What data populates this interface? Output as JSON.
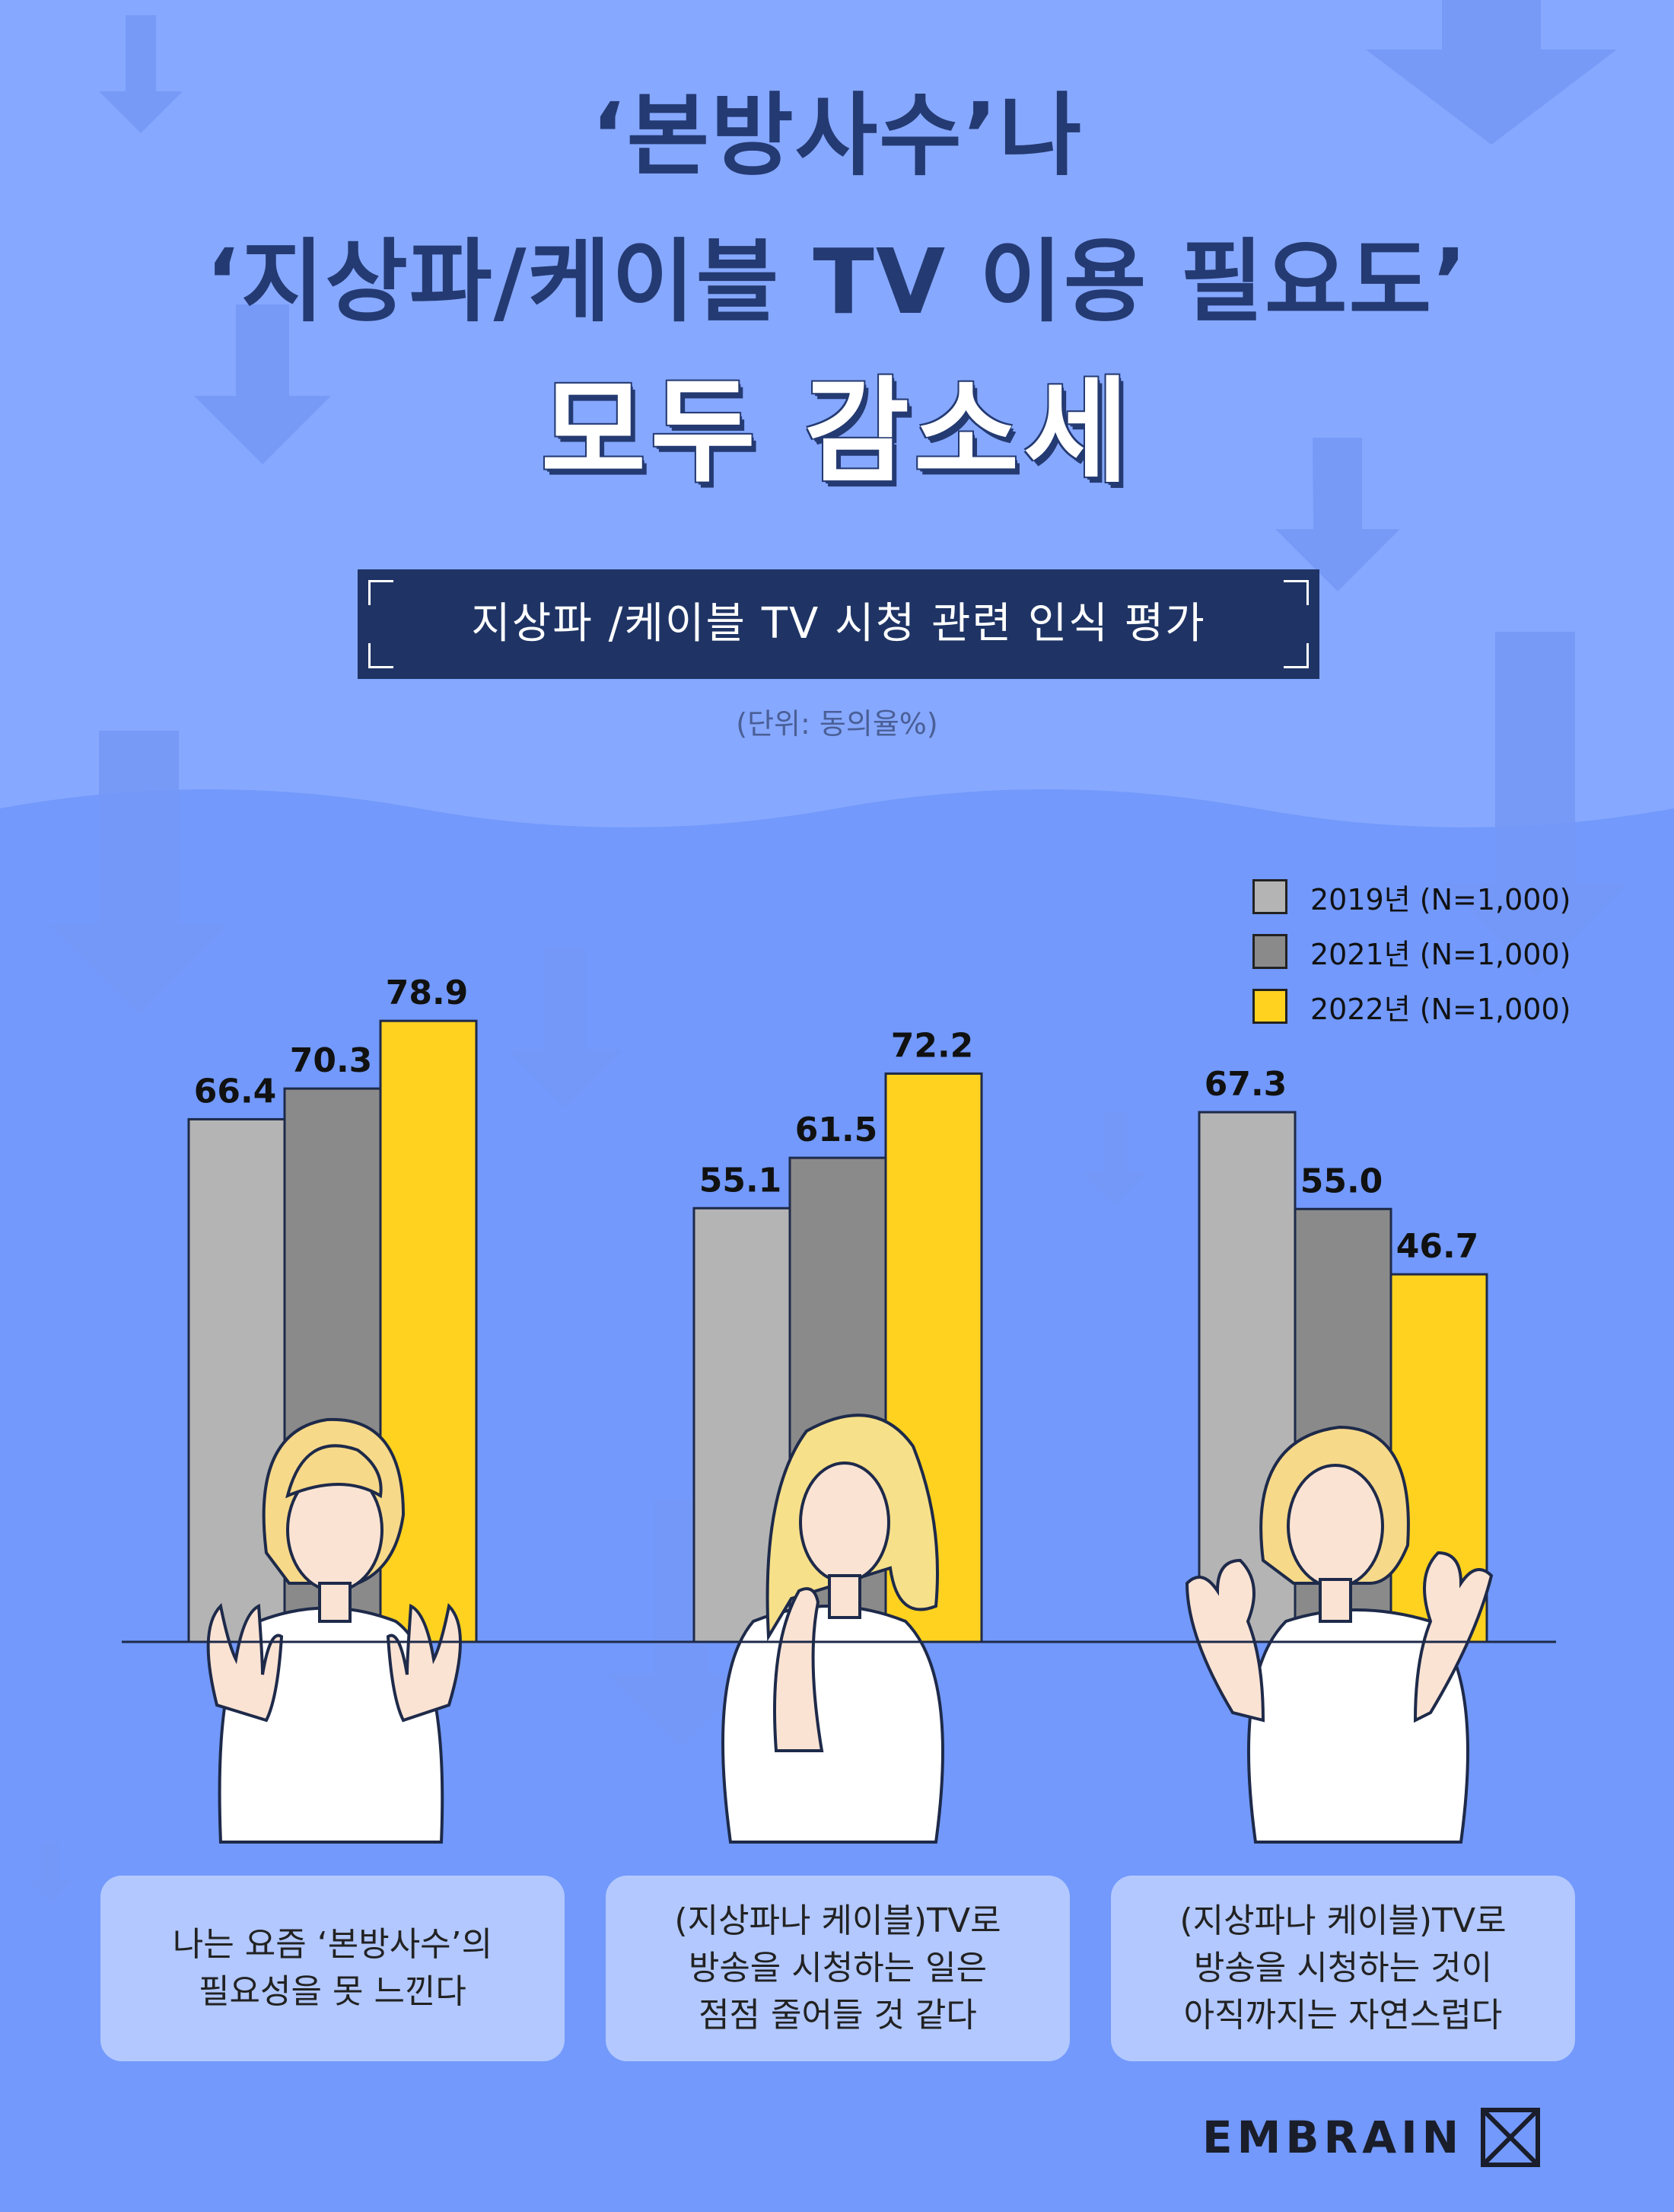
{
  "header": {
    "title_line1": "‘본방사수’나",
    "title_line2": "‘지상파/케이블 TV 이용 필요도’",
    "title_line3": "모두 감소세",
    "subtitle": "지상파 /케이블 TV 시청 관련 인식 평가",
    "unit": "(단위: 동의율%)"
  },
  "colors": {
    "background_top": "#86a8ff",
    "background_bottom": "#7299fb",
    "series_2019": "#b4b4b4",
    "series_2021": "#8a8a8a",
    "series_2022": "#ffd21f",
    "title_navy": "#243a72"
  },
  "chart_data": {
    "type": "bar",
    "categories": [
      "나는 요즘 ‘본방사수’의 필요성을 못 느낀다",
      "(지상파나 케이블)TV로 방송을 시청하는 일은 점점 줄어들 것 같다",
      "(지상파나 케이블)TV로 방송을 시청하는 것이 아직까지는 자연스럽다"
    ],
    "series": [
      {
        "name": "2019년 (N=1,000)",
        "values": [
          66.4,
          55.1,
          67.3
        ],
        "labels": [
          "66.4",
          "55.1",
          "67.3"
        ]
      },
      {
        "name": "2021년 (N=1,000)",
        "values": [
          70.3,
          61.5,
          55.0
        ],
        "labels": [
          "70.3",
          "61.5",
          "55.0"
        ]
      },
      {
        "name": "2022년 (N=1,000)",
        "values": [
          78.9,
          72.2,
          46.7
        ],
        "labels": [
          "78.9",
          "72.2",
          "46.7"
        ]
      }
    ],
    "ylim": [
      0,
      100
    ],
    "grid": false,
    "legend_position": "top-right"
  },
  "legend": {
    "items": [
      {
        "label": "2019년 (N=1,000)",
        "color": "#b4b4b4"
      },
      {
        "label": "2021년 (N=1,000)",
        "color": "#8a8a8a"
      },
      {
        "label": "2022년 (N=1,000)",
        "color": "#ffd21f"
      }
    ]
  },
  "captions": [
    {
      "lines": [
        "나는 요즘 ‘본방사수’의",
        "필요성을 못 느낀다"
      ]
    },
    {
      "lines": [
        "(지상파나 케이블)TV로",
        "방송을 시청하는 일은",
        "점점 줄어들 것 같다"
      ]
    },
    {
      "lines": [
        "(지상파나 케이블)TV로",
        "방송을 시청하는 것이",
        "아직까지는 자연스럽다"
      ]
    }
  ],
  "brand": {
    "name": "EMBRAIN",
    "icon": "embrain-logo-icon"
  }
}
